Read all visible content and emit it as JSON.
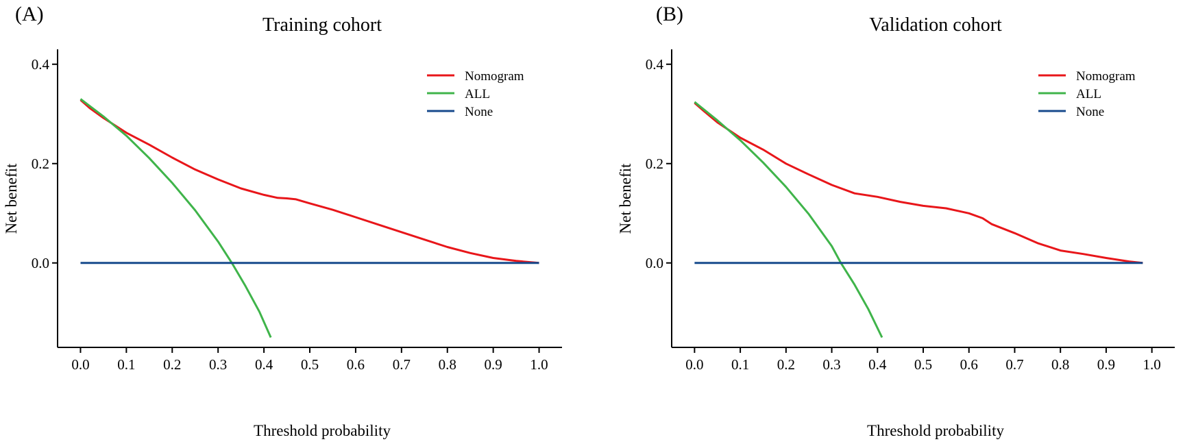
{
  "chart_data": [
    {
      "type": "line",
      "panel_label": "(A)",
      "title": "Training cohort",
      "xlabel": "Threshold probability",
      "ylabel": "Net benefit",
      "xlim": [
        -0.05,
        1.05
      ],
      "ylim": [
        -0.17,
        0.43
      ],
      "xticks": [
        0.0,
        0.1,
        0.2,
        0.3,
        0.4,
        0.5,
        0.6,
        0.7,
        0.8,
        0.9,
        1.0
      ],
      "xtick_labels": [
        "0.0",
        "0.1",
        "0.2",
        "0.3",
        "0.4",
        "0.5",
        "0.6",
        "0.7",
        "0.8",
        "0.9",
        "1.0"
      ],
      "yticks": [
        0.0,
        0.2,
        0.4
      ],
      "ytick_labels": [
        "0.0",
        "0.2",
        "0.4"
      ],
      "grid": false,
      "legend_position": "top-right",
      "series": [
        {
          "name": "Nomogram",
          "color": "#e8161a",
          "x": [
            0.0,
            0.02,
            0.05,
            0.1,
            0.15,
            0.2,
            0.25,
            0.3,
            0.35,
            0.4,
            0.43,
            0.45,
            0.47,
            0.5,
            0.55,
            0.6,
            0.65,
            0.7,
            0.75,
            0.8,
            0.85,
            0.9,
            0.95,
            1.0
          ],
          "y": [
            0.328,
            0.312,
            0.292,
            0.262,
            0.238,
            0.212,
            0.188,
            0.168,
            0.15,
            0.137,
            0.131,
            0.13,
            0.128,
            0.12,
            0.107,
            0.092,
            0.077,
            0.062,
            0.047,
            0.032,
            0.02,
            0.01,
            0.004,
            0.0
          ]
        },
        {
          "name": "ALL",
          "color": "#3fb44a",
          "x": [
            0.0,
            0.05,
            0.1,
            0.15,
            0.2,
            0.25,
            0.3,
            0.33,
            0.36,
            0.39,
            0.415
          ],
          "y": [
            0.33,
            0.295,
            0.256,
            0.211,
            0.161,
            0.106,
            0.043,
            0.0,
            -0.047,
            -0.098,
            -0.15
          ]
        },
        {
          "name": "None",
          "color": "#174a8c",
          "x": [
            0.0,
            1.0
          ],
          "y": [
            0.0,
            0.0
          ]
        }
      ]
    },
    {
      "type": "line",
      "panel_label": "(B)",
      "title": "Validation cohort",
      "xlabel": "Threshold probability",
      "ylabel": "Net benefit",
      "xlim": [
        -0.05,
        1.05
      ],
      "ylim": [
        -0.17,
        0.43
      ],
      "xticks": [
        0.0,
        0.1,
        0.2,
        0.3,
        0.4,
        0.5,
        0.6,
        0.7,
        0.8,
        0.9,
        1.0
      ],
      "xtick_labels": [
        "0.0",
        "0.1",
        "0.2",
        "0.3",
        "0.4",
        "0.5",
        "0.6",
        "0.7",
        "0.8",
        "0.9",
        "1.0"
      ],
      "yticks": [
        0.0,
        0.2,
        0.4
      ],
      "ytick_labels": [
        "0.0",
        "0.2",
        "0.4"
      ],
      "grid": false,
      "legend_position": "top-right",
      "series": [
        {
          "name": "Nomogram",
          "color": "#e8161a",
          "x": [
            0.0,
            0.02,
            0.05,
            0.1,
            0.15,
            0.2,
            0.25,
            0.3,
            0.35,
            0.4,
            0.45,
            0.5,
            0.55,
            0.6,
            0.63,
            0.65,
            0.7,
            0.75,
            0.8,
            0.85,
            0.9,
            0.95,
            0.98
          ],
          "y": [
            0.322,
            0.306,
            0.283,
            0.252,
            0.228,
            0.2,
            0.178,
            0.157,
            0.14,
            0.133,
            0.123,
            0.115,
            0.11,
            0.1,
            0.09,
            0.078,
            0.06,
            0.04,
            0.025,
            0.018,
            0.01,
            0.003,
            0.0
          ]
        },
        {
          "name": "ALL",
          "color": "#3fb44a",
          "x": [
            0.0,
            0.05,
            0.1,
            0.15,
            0.2,
            0.25,
            0.3,
            0.32,
            0.35,
            0.38,
            0.41
          ],
          "y": [
            0.324,
            0.287,
            0.247,
            0.202,
            0.153,
            0.098,
            0.034,
            0.0,
            -0.044,
            -0.093,
            -0.15
          ]
        },
        {
          "name": "None",
          "color": "#174a8c",
          "x": [
            0.0,
            0.98
          ],
          "y": [
            0.0,
            0.0
          ]
        }
      ]
    }
  ]
}
